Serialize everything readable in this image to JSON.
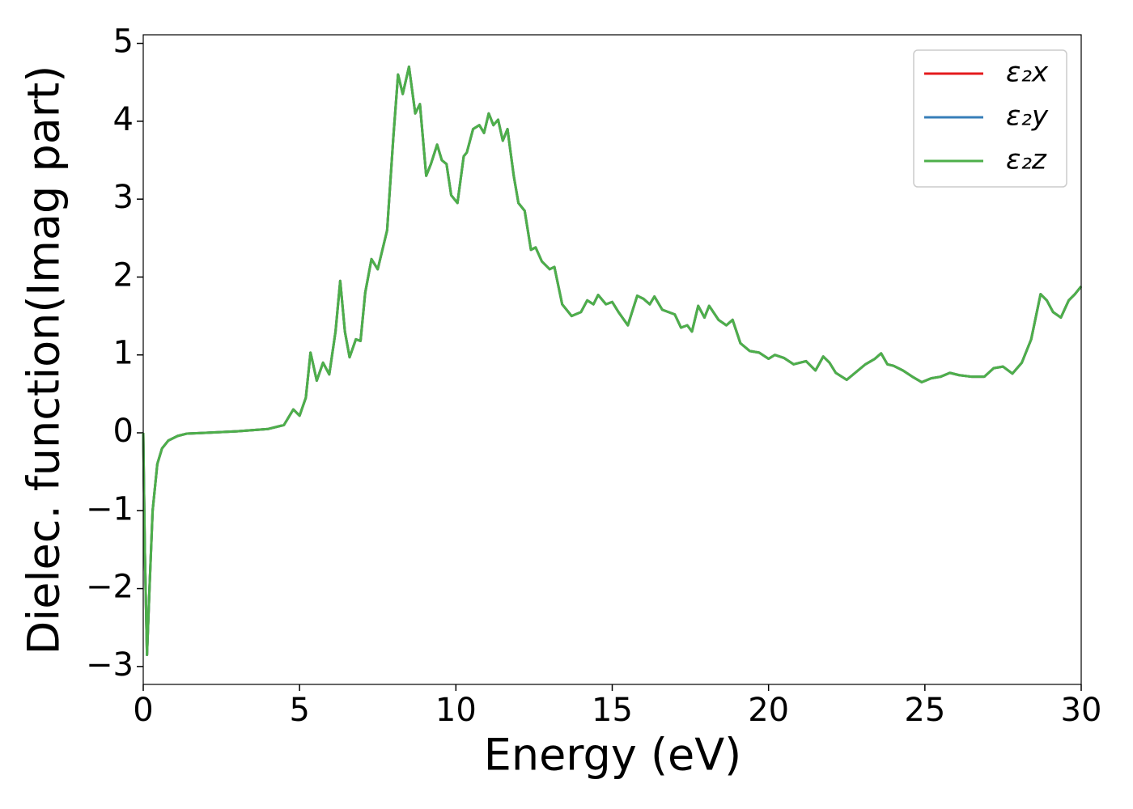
{
  "chart_data": {
    "type": "line",
    "xlabel": "Energy (eV)",
    "ylabel": "Dielec. function(Imag part)",
    "xlim": [
      0,
      30
    ],
    "ylim": [
      -3.23,
      5.11
    ],
    "xticks": [
      0,
      5,
      10,
      15,
      20,
      25,
      30
    ],
    "yticks": [
      {
        "value": -3,
        "label": "−3"
      },
      {
        "value": -2,
        "label": "−2"
      },
      {
        "value": -1,
        "label": "−1"
      },
      0,
      1,
      2,
      3,
      4,
      5
    ],
    "legend": "upper right",
    "x": [
      0,
      0.05,
      0.12,
      0.2,
      0.3,
      0.45,
      0.6,
      0.8,
      1.1,
      1.4,
      2,
      3,
      4,
      4.5,
      4.8,
      5.0,
      5.2,
      5.35,
      5.55,
      5.75,
      5.95,
      6.15,
      6.3,
      6.45,
      6.6,
      6.8,
      6.95,
      7.1,
      7.3,
      7.5,
      7.8,
      8.0,
      8.15,
      8.3,
      8.5,
      8.7,
      8.85,
      9.05,
      9.2,
      9.4,
      9.55,
      9.7,
      9.85,
      10.05,
      10.25,
      10.35,
      10.55,
      10.75,
      10.9,
      11.05,
      11.2,
      11.35,
      11.5,
      11.65,
      11.85,
      12.0,
      12.2,
      12.4,
      12.55,
      12.75,
      13.0,
      13.15,
      13.4,
      13.7,
      14.0,
      14.2,
      14.4,
      14.55,
      14.8,
      15.0,
      15.2,
      15.5,
      15.8,
      16.0,
      16.2,
      16.35,
      16.6,
      17.0,
      17.2,
      17.4,
      17.55,
      17.75,
      17.95,
      18.1,
      18.4,
      18.65,
      18.85,
      19.1,
      19.4,
      19.7,
      20.0,
      20.2,
      20.5,
      20.8,
      21.2,
      21.5,
      21.75,
      21.95,
      22.15,
      22.5,
      22.8,
      23.1,
      23.4,
      23.6,
      23.8,
      24.0,
      24.3,
      24.6,
      24.9,
      25.2,
      25.5,
      25.8,
      26.1,
      26.5,
      26.9,
      27.2,
      27.5,
      27.8,
      28.1,
      28.4,
      28.7,
      28.9,
      29.1,
      29.35,
      29.6,
      29.8,
      30.0
    ],
    "series": [
      {
        "name": "ε₂x",
        "color": "#e41a1c",
        "values": [
          0,
          -1.5,
          -2.85,
          -2.0,
          -1.0,
          -0.4,
          -0.2,
          -0.1,
          -0.04,
          -0.01,
          0.0,
          0.02,
          0.05,
          0.1,
          0.3,
          0.22,
          0.45,
          1.03,
          0.67,
          0.9,
          0.75,
          1.3,
          1.95,
          1.3,
          0.97,
          1.2,
          1.18,
          1.8,
          2.23,
          2.1,
          2.6,
          3.8,
          4.6,
          4.35,
          4.7,
          4.1,
          4.22,
          3.3,
          3.45,
          3.7,
          3.5,
          3.45,
          3.05,
          2.95,
          3.55,
          3.6,
          3.9,
          3.95,
          3.85,
          4.1,
          3.95,
          4.02,
          3.75,
          3.9,
          3.3,
          2.95,
          2.85,
          2.35,
          2.38,
          2.2,
          2.1,
          2.13,
          1.65,
          1.5,
          1.55,
          1.7,
          1.65,
          1.77,
          1.65,
          1.68,
          1.55,
          1.38,
          1.76,
          1.72,
          1.65,
          1.75,
          1.58,
          1.52,
          1.35,
          1.38,
          1.3,
          1.63,
          1.48,
          1.63,
          1.45,
          1.38,
          1.45,
          1.15,
          1.05,
          1.03,
          0.95,
          1.0,
          0.96,
          0.88,
          0.92,
          0.8,
          0.98,
          0.9,
          0.77,
          0.68,
          0.78,
          0.88,
          0.95,
          1.02,
          0.88,
          0.86,
          0.8,
          0.72,
          0.65,
          0.7,
          0.72,
          0.77,
          0.74,
          0.72,
          0.72,
          0.83,
          0.85,
          0.76,
          0.9,
          1.2,
          1.78,
          1.7,
          1.55,
          1.48,
          1.7,
          1.78,
          1.88
        ]
      },
      {
        "name": "ε₂y",
        "color": "#377eb8",
        "values": [
          0,
          -1.5,
          -2.85,
          -2.0,
          -1.0,
          -0.4,
          -0.2,
          -0.1,
          -0.04,
          -0.01,
          0.0,
          0.02,
          0.05,
          0.1,
          0.3,
          0.22,
          0.45,
          1.03,
          0.67,
          0.9,
          0.75,
          1.3,
          1.95,
          1.3,
          0.97,
          1.2,
          1.18,
          1.8,
          2.23,
          2.1,
          2.6,
          3.8,
          4.6,
          4.35,
          4.7,
          4.1,
          4.22,
          3.3,
          3.45,
          3.7,
          3.5,
          3.45,
          3.05,
          2.95,
          3.55,
          3.6,
          3.9,
          3.95,
          3.85,
          4.1,
          3.95,
          4.02,
          3.75,
          3.9,
          3.3,
          2.95,
          2.85,
          2.35,
          2.38,
          2.2,
          2.1,
          2.13,
          1.65,
          1.5,
          1.55,
          1.7,
          1.65,
          1.77,
          1.65,
          1.68,
          1.55,
          1.38,
          1.76,
          1.72,
          1.65,
          1.75,
          1.58,
          1.52,
          1.35,
          1.38,
          1.3,
          1.63,
          1.48,
          1.63,
          1.45,
          1.38,
          1.45,
          1.15,
          1.05,
          1.03,
          0.95,
          1.0,
          0.96,
          0.88,
          0.92,
          0.8,
          0.98,
          0.9,
          0.77,
          0.68,
          0.78,
          0.88,
          0.95,
          1.02,
          0.88,
          0.86,
          0.8,
          0.72,
          0.65,
          0.7,
          0.72,
          0.77,
          0.74,
          0.72,
          0.72,
          0.83,
          0.85,
          0.76,
          0.9,
          1.2,
          1.78,
          1.7,
          1.55,
          1.48,
          1.7,
          1.78,
          1.88
        ]
      },
      {
        "name": "ε₂z",
        "color": "#4daf4a",
        "values": [
          0,
          -1.5,
          -2.85,
          -2.0,
          -1.0,
          -0.4,
          -0.2,
          -0.1,
          -0.04,
          -0.01,
          0.0,
          0.02,
          0.05,
          0.1,
          0.3,
          0.22,
          0.45,
          1.03,
          0.67,
          0.9,
          0.75,
          1.3,
          1.95,
          1.3,
          0.97,
          1.2,
          1.18,
          1.8,
          2.23,
          2.1,
          2.6,
          3.8,
          4.6,
          4.35,
          4.7,
          4.1,
          4.22,
          3.3,
          3.45,
          3.7,
          3.5,
          3.45,
          3.05,
          2.95,
          3.55,
          3.6,
          3.9,
          3.95,
          3.85,
          4.1,
          3.95,
          4.02,
          3.75,
          3.9,
          3.3,
          2.95,
          2.85,
          2.35,
          2.38,
          2.2,
          2.1,
          2.13,
          1.65,
          1.5,
          1.55,
          1.7,
          1.65,
          1.77,
          1.65,
          1.68,
          1.55,
          1.38,
          1.76,
          1.72,
          1.65,
          1.75,
          1.58,
          1.52,
          1.35,
          1.38,
          1.3,
          1.63,
          1.48,
          1.63,
          1.45,
          1.38,
          1.45,
          1.15,
          1.05,
          1.03,
          0.95,
          1.0,
          0.96,
          0.88,
          0.92,
          0.8,
          0.98,
          0.9,
          0.77,
          0.68,
          0.78,
          0.88,
          0.95,
          1.02,
          0.88,
          0.86,
          0.8,
          0.72,
          0.65,
          0.7,
          0.72,
          0.77,
          0.74,
          0.72,
          0.72,
          0.83,
          0.85,
          0.76,
          0.9,
          1.2,
          1.78,
          1.7,
          1.55,
          1.48,
          1.7,
          1.78,
          1.88
        ]
      }
    ]
  }
}
